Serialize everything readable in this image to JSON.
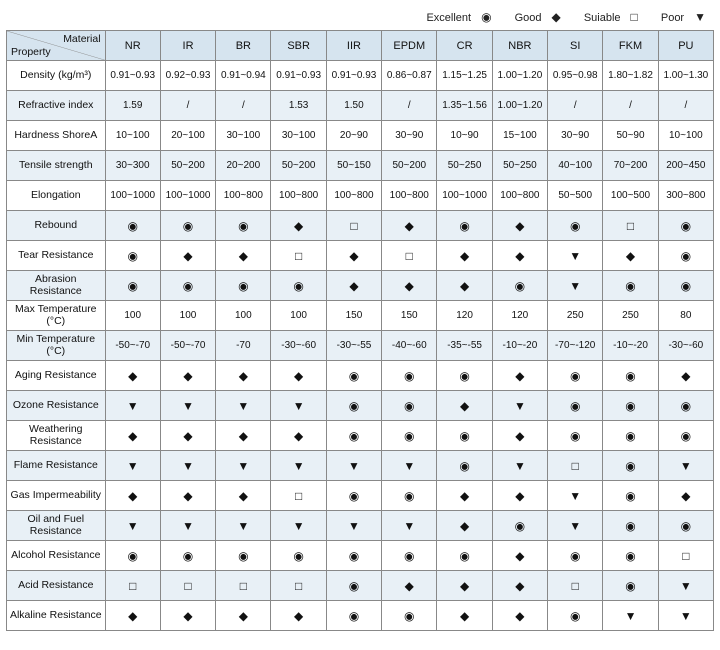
{
  "legend": [
    {
      "label": "Excellent",
      "sym": "◉"
    },
    {
      "label": "Good",
      "sym": "◆"
    },
    {
      "label": "Suiable",
      "sym": "□"
    },
    {
      "label": "Poor",
      "sym": "▼"
    }
  ],
  "corner": {
    "top": "Material",
    "bottom": "Property"
  },
  "materials": [
    "NR",
    "IR",
    "BR",
    "SBR",
    "IIR",
    "EPDM",
    "CR",
    "NBR",
    "SI",
    "FKM",
    "PU"
  ],
  "rows": [
    {
      "name": "Density (kg/m³)",
      "cells": [
        "0.91~0.93",
        "0.92~0.93",
        "0.91~0.94",
        "0.91~0.93",
        "0.91~0.93",
        "0.86~0.87",
        "1.15~1.25",
        "1.00~1.20",
        "0.95~0.98",
        "1.80~1.82",
        "1.00~1.30"
      ]
    },
    {
      "name": "Refractive index",
      "cells": [
        "1.59",
        "/",
        "/",
        "1.53",
        "1.50",
        "/",
        "1.35~1.56",
        "1.00~1.20",
        "/",
        "/",
        "/"
      ]
    },
    {
      "name": "Hardness ShoreA",
      "cells": [
        "10~100",
        "20~100",
        "30~100",
        "30~100",
        "20~90",
        "30~90",
        "10~90",
        "15~100",
        "30~90",
        "50~90",
        "10~100"
      ]
    },
    {
      "name": "Tensile strength",
      "cells": [
        "30~300",
        "50~200",
        "20~200",
        "50~200",
        "50~150",
        "50~200",
        "50~250",
        "50~250",
        "40~100",
        "70~200",
        "200~450"
      ]
    },
    {
      "name": "Elongation",
      "cells": [
        "100~1000",
        "100~1000",
        "100~800",
        "100~800",
        "100~800",
        "100~800",
        "100~1000",
        "100~800",
        "50~500",
        "100~500",
        "300~800"
      ]
    },
    {
      "name": "Rebound",
      "cells": [
        "◉",
        "◉",
        "◉",
        "◆",
        "□",
        "◆",
        "◉",
        "◆",
        "◉",
        "□",
        "◉"
      ]
    },
    {
      "name": "Tear Resistance",
      "cells": [
        "◉",
        "◆",
        "◆",
        "□",
        "◆",
        "□",
        "◆",
        "◆",
        "▼",
        "◆",
        "◉"
      ]
    },
    {
      "name": "Abrasion Resistance",
      "cells": [
        "◉",
        "◉",
        "◉",
        "◉",
        "◆",
        "◆",
        "◆",
        "◉",
        "▼",
        "◉",
        "◉"
      ]
    },
    {
      "name": "Max Temperature (°C)",
      "cells": [
        "100",
        "100",
        "100",
        "100",
        "150",
        "150",
        "120",
        "120",
        "250",
        "250",
        "80"
      ]
    },
    {
      "name": "Min Temperature (°C)",
      "cells": [
        "-50~-70",
        "-50~-70",
        "-70",
        "-30~-60",
        "-30~-55",
        "-40~-60",
        "-35~-55",
        "-10~-20",
        "-70~-120",
        "-10~-20",
        "-30~-60"
      ]
    },
    {
      "name": "Aging Resistance",
      "cells": [
        "◆",
        "◆",
        "◆",
        "◆",
        "◉",
        "◉",
        "◉",
        "◆",
        "◉",
        "◉",
        "◆"
      ]
    },
    {
      "name": "Ozone Resistance",
      "cells": [
        "▼",
        "▼",
        "▼",
        "▼",
        "◉",
        "◉",
        "◆",
        "▼",
        "◉",
        "◉",
        "◉"
      ]
    },
    {
      "name": "Weathering Resistance",
      "cells": [
        "◆",
        "◆",
        "◆",
        "◆",
        "◉",
        "◉",
        "◉",
        "◆",
        "◉",
        "◉",
        "◉"
      ]
    },
    {
      "name": "Flame Resistance",
      "cells": [
        "▼",
        "▼",
        "▼",
        "▼",
        "▼",
        "▼",
        "◉",
        "▼",
        "□",
        "◉",
        "▼"
      ]
    },
    {
      "name": "Gas Impermeability",
      "cells": [
        "◆",
        "◆",
        "◆",
        "□",
        "◉",
        "◉",
        "◆",
        "◆",
        "▼",
        "◉",
        "◆"
      ]
    },
    {
      "name": "Oil and Fuel Resistance",
      "cells": [
        "▼",
        "▼",
        "▼",
        "▼",
        "▼",
        "▼",
        "◆",
        "◉",
        "▼",
        "◉",
        "◉"
      ]
    },
    {
      "name": "Alcohol Resistance",
      "cells": [
        "◉",
        "◉",
        "◉",
        "◉",
        "◉",
        "◉",
        "◉",
        "◆",
        "◉",
        "◉",
        "□"
      ]
    },
    {
      "name": "Acid Resistance",
      "cells": [
        "□",
        "□",
        "□",
        "□",
        "◉",
        "◆",
        "◆",
        "◆",
        "□",
        "◉",
        "▼"
      ]
    },
    {
      "name": "Alkaline Resistance",
      "cells": [
        "◆",
        "◆",
        "◆",
        "◆",
        "◉",
        "◉",
        "◆",
        "◆",
        "◉",
        "▼",
        "▼"
      ]
    }
  ],
  "colors": {
    "header_bg": "#d6e4ef",
    "odd_bg": "#e8f0f6",
    "even_bg": "#ffffff",
    "border": "#888888"
  }
}
